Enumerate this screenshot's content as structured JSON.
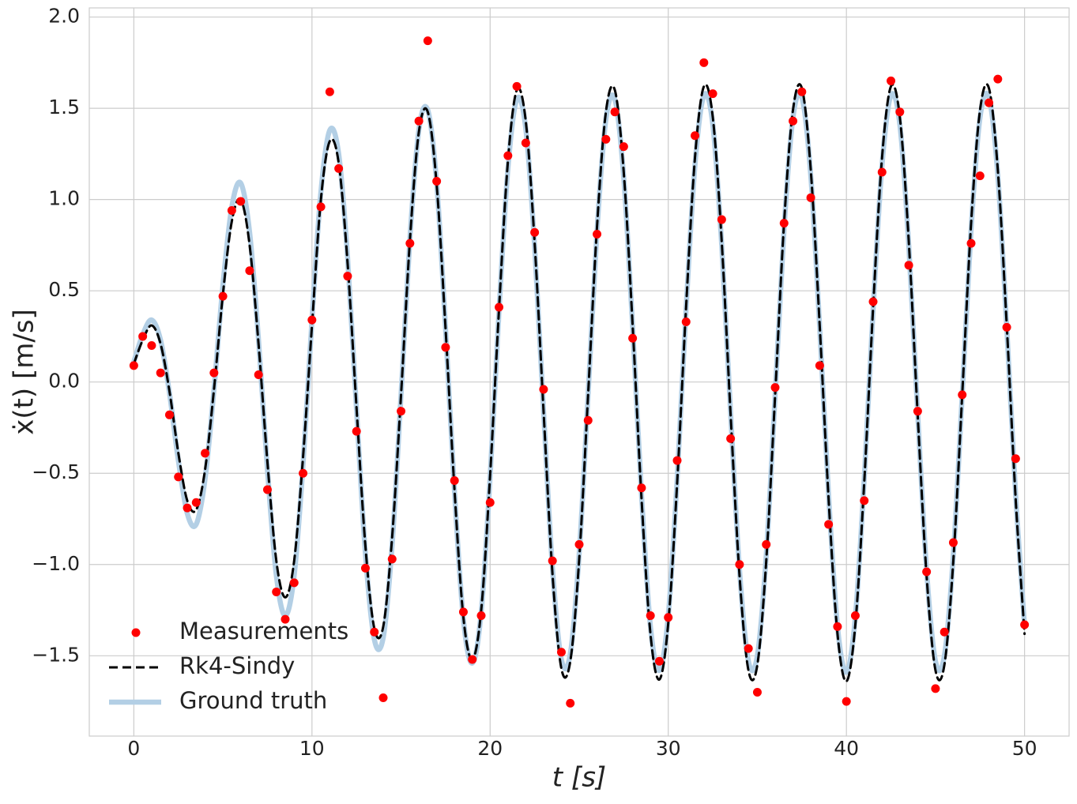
{
  "chart_data": {
    "type": "line",
    "xlabel": "t [s]",
    "ylabel": "ẋ(t) [m/s]",
    "x": [
      0,
      0.5,
      1,
      1.5,
      2,
      2.5,
      3,
      3.5,
      4,
      4.5,
      5,
      5.5,
      6,
      6.5,
      7,
      7.5,
      8,
      8.5,
      9,
      9.5,
      10,
      10.5,
      11,
      11.5,
      12,
      12.5,
      13,
      13.5,
      14,
      14.5,
      15,
      15.5,
      16,
      16.5,
      17,
      17.5,
      18,
      18.5,
      19,
      19.5,
      20,
      20.5,
      21,
      21.5,
      22,
      22.5,
      23,
      23.5,
      24,
      24.5,
      25,
      25.5,
      26,
      26.5,
      27,
      27.5,
      28,
      28.5,
      29,
      29.5,
      30,
      30.5,
      31,
      31.5,
      32,
      32.5,
      33,
      33.5,
      34,
      34.5,
      35,
      35.5,
      36,
      36.5,
      37,
      37.5,
      38,
      38.5,
      39,
      39.5,
      40,
      40.5,
      41,
      41.5,
      42,
      42.5,
      43,
      43.5,
      44,
      44.5,
      45,
      45.5,
      46,
      46.5,
      47,
      47.5,
      48,
      48.5,
      49,
      49.5,
      50
    ],
    "series": [
      {
        "name": "Measurements",
        "type": "scatter",
        "color": "#ff0000",
        "values": [
          0.09,
          0.25,
          0.2,
          0.05,
          -0.18,
          -0.52,
          -0.69,
          -0.66,
          -0.39,
          0.05,
          0.47,
          0.94,
          0.99,
          0.61,
          0.04,
          -0.59,
          -1.15,
          -1.3,
          -1.1,
          -0.5,
          0.34,
          0.96,
          1.59,
          1.17,
          0.58,
          -0.27,
          -1.02,
          -1.37,
          -1.73,
          -0.97,
          -0.16,
          0.76,
          1.43,
          1.87,
          1.1,
          0.19,
          -0.54,
          -1.26,
          -1.52,
          -1.28,
          -0.66,
          0.41,
          1.24,
          1.62,
          1.31,
          0.82,
          -0.04,
          -0.98,
          -1.48,
          -1.76,
          -0.89,
          -0.21,
          0.81,
          1.33,
          1.48,
          1.29,
          0.24,
          -0.58,
          -1.28,
          -1.53,
          -1.29,
          -0.43,
          0.33,
          1.35,
          1.75,
          1.58,
          0.89,
          -0.31,
          -1.0,
          -1.46,
          -1.7,
          -0.89,
          -0.03,
          0.87,
          1.43,
          1.59,
          1.01,
          0.09,
          -0.78,
          -1.34,
          -1.75,
          -1.28,
          -0.65,
          0.44,
          1.15,
          1.65,
          1.48,
          0.64,
          -0.16,
          -1.04,
          -1.68,
          -1.37,
          -0.88,
          -0.07,
          0.76,
          1.13,
          1.53,
          1.66,
          0.3,
          -0.42,
          -1.33
        ]
      },
      {
        "name": "Rk4-Sindy",
        "type": "line",
        "color": "#000000",
        "linestyle": "dashed",
        "values": [
          0.1,
          0.23,
          0.31,
          0.21,
          -0.05,
          -0.39,
          -0.65,
          -0.7,
          -0.48,
          -0.04,
          0.48,
          0.88,
          1.0,
          0.75,
          0.21,
          -0.44,
          -0.98,
          -1.18,
          -0.98,
          -0.41,
          0.31,
          1.0,
          1.32,
          1.2,
          0.65,
          -0.14,
          -0.9,
          -1.35,
          -1.34,
          -0.85,
          -0.07,
          0.78,
          1.37,
          1.48,
          1.08,
          0.29,
          -0.59,
          -1.29,
          -1.52,
          -1.25,
          -0.51,
          0.4,
          1.21,
          1.6,
          1.43,
          0.76,
          -0.16,
          -1.05,
          -1.57,
          -1.53,
          -0.97,
          -0.07,
          0.85,
          1.48,
          1.6,
          1.15,
          0.31,
          -0.64,
          -1.38,
          -1.63,
          -1.32,
          -0.55,
          0.41,
          1.23,
          1.62,
          1.45,
          0.77,
          -0.18,
          -1.06,
          -1.58,
          -1.55,
          -0.98,
          -0.07,
          0.87,
          1.49,
          1.61,
          1.16,
          0.31,
          -0.64,
          -1.38,
          -1.64,
          -1.33,
          -0.55,
          0.41,
          1.23,
          1.62,
          1.45,
          0.77,
          -0.18,
          -1.06,
          -1.58,
          -1.55,
          -0.98,
          -0.07,
          0.87,
          1.49,
          1.61,
          1.16,
          0.31,
          -0.64,
          -1.38
        ]
      },
      {
        "name": "Ground truth",
        "type": "line",
        "color": "#b3cfe5",
        "linestyle": "solid",
        "values": [
          0.11,
          0.26,
          0.34,
          0.23,
          -0.06,
          -0.43,
          -0.72,
          -0.78,
          -0.53,
          -0.04,
          0.53,
          0.96,
          1.09,
          0.82,
          0.23,
          -0.48,
          -1.06,
          -1.28,
          -1.06,
          -0.45,
          0.34,
          1.04,
          1.38,
          1.25,
          0.68,
          -0.15,
          -0.94,
          -1.41,
          -1.4,
          -0.89,
          -0.07,
          0.79,
          1.38,
          1.49,
          1.09,
          0.29,
          -0.6,
          -1.3,
          -1.54,
          -1.26,
          -0.52,
          0.39,
          1.17,
          1.55,
          1.39,
          0.74,
          -0.16,
          -1.02,
          -1.52,
          -1.49,
          -0.94,
          -0.07,
          0.83,
          1.44,
          1.55,
          1.12,
          0.3,
          -0.62,
          -1.34,
          -1.58,
          -1.28,
          -0.53,
          0.4,
          1.19,
          1.57,
          1.41,
          0.75,
          -0.17,
          -1.03,
          -1.53,
          -1.5,
          -0.95,
          -0.07,
          0.84,
          1.45,
          1.56,
          1.13,
          0.3,
          -0.62,
          -1.34,
          -1.59,
          -1.29,
          -0.53,
          0.4,
          1.19,
          1.57,
          1.41,
          0.75,
          -0.17,
          -1.03,
          -1.53,
          -1.5,
          -0.95,
          -0.07,
          0.84,
          1.45,
          1.56,
          1.13,
          0.3,
          -0.62,
          -1.34
        ]
      }
    ],
    "xlim": [
      -2.5,
      52.5
    ],
    "ylim": [
      -1.94,
      2.05
    ],
    "xticks": [
      0,
      10,
      20,
      30,
      40,
      50
    ],
    "yticks": [
      {
        "value": -1.5,
        "label": "−1.5"
      },
      {
        "value": -1.0,
        "label": "−1.0"
      },
      {
        "value": -0.5,
        "label": "−0.5"
      },
      {
        "value": 0,
        "label": "0.0"
      },
      {
        "value": 0.5,
        "label": "0.5"
      },
      {
        "value": 1.0,
        "label": "1.0"
      },
      {
        "value": 1.5,
        "label": "1.5"
      },
      {
        "value": 2.0,
        "label": "2.0"
      }
    ],
    "grid": true,
    "legend": "lower left"
  }
}
